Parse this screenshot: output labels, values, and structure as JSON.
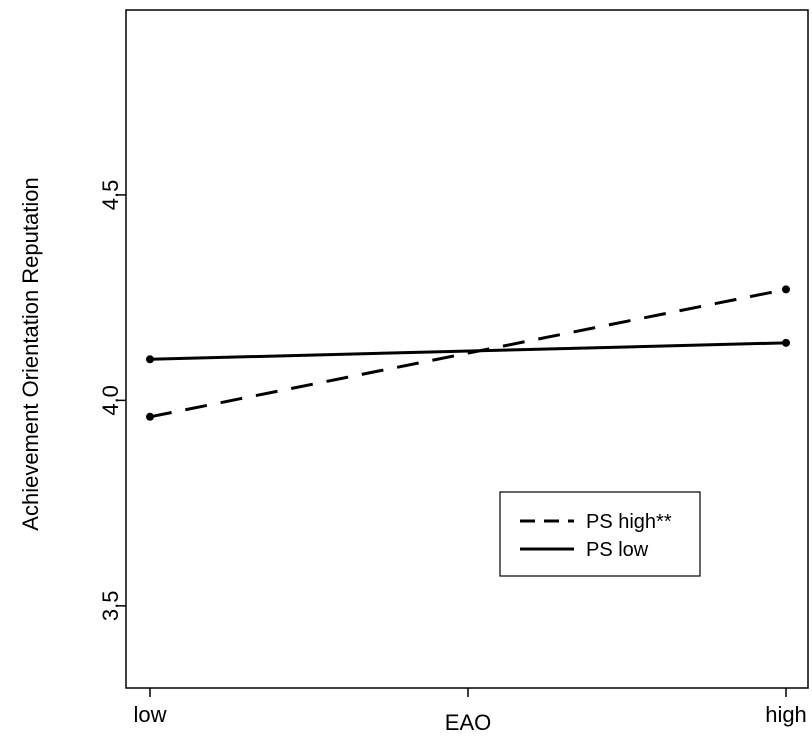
{
  "chart_data": {
    "type": "line",
    "title": "",
    "xlabel": "EAO",
    "ylabel": "Achievement Orientation Reputation",
    "categories": [
      "low",
      "high"
    ],
    "x_tick_labels": [
      "low",
      "EAO",
      "high"
    ],
    "y_ticks": [
      3.5,
      4.0,
      4.5
    ],
    "y_tick_labels": [
      "3.5",
      "4.0",
      "4.5"
    ],
    "ylim": [
      3.3,
      4.95
    ],
    "grid": false,
    "legend_position": "bottom-right",
    "series": [
      {
        "name": "PS high**",
        "values": [
          3.96,
          4.27
        ],
        "line_style": "dashed",
        "color": "#000000"
      },
      {
        "name": "PS low",
        "values": [
          4.1,
          4.14
        ],
        "line_style": "solid",
        "color": "#000000"
      }
    ]
  }
}
